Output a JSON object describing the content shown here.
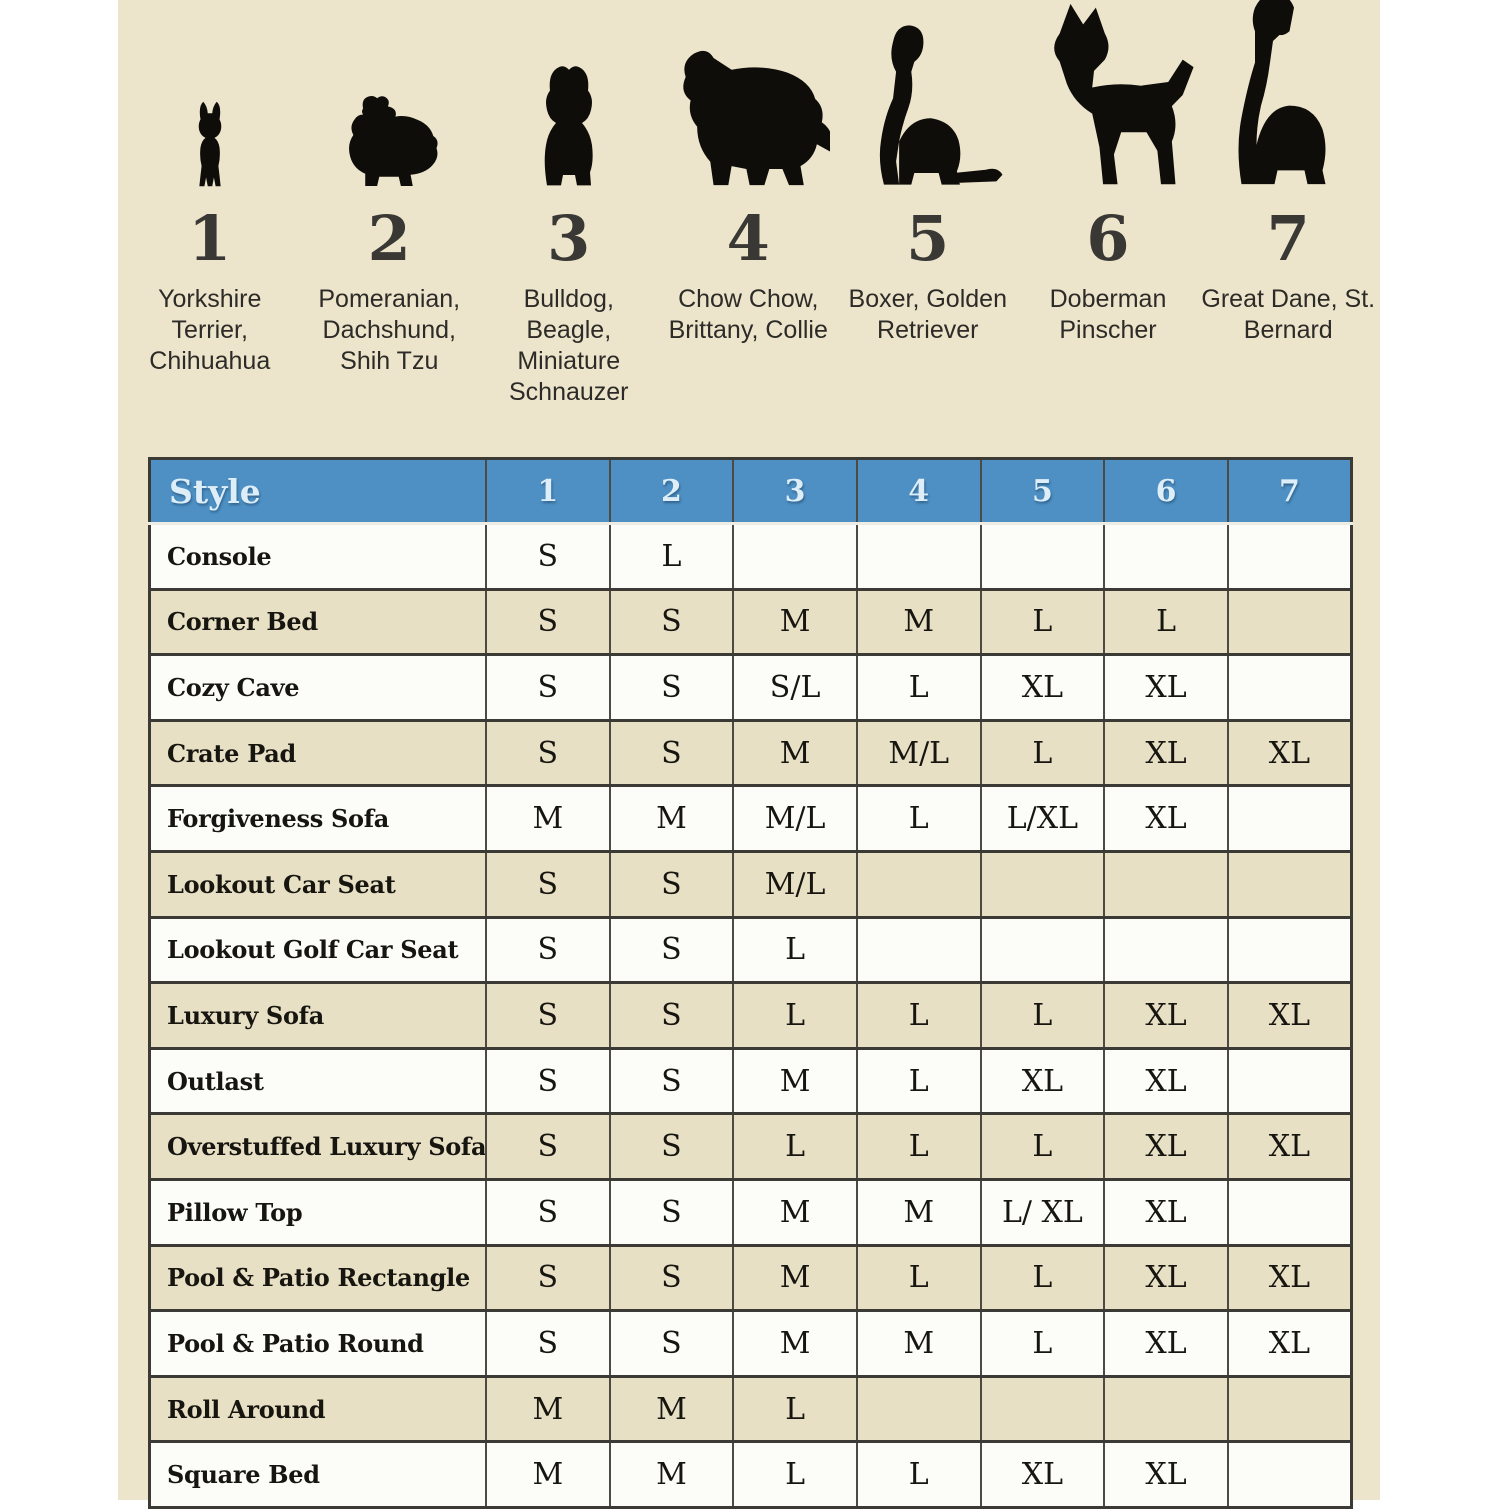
{
  "colors": {
    "panel_bg": "#ece4cb",
    "header_bg": "#4e90c4",
    "header_text": "#ddeef9",
    "row_bg": "#fcfcf9",
    "row_alt_bg": "#e8e0c5",
    "row_border": "#3c3a34",
    "col_border": "#4c4a43",
    "text": "#17150f",
    "silhouette": "#0e0d0a"
  },
  "chart_data": {
    "type": "table",
    "legend": [
      {
        "number": "1",
        "breeds": "Yorkshire Terrier, Chihuahua",
        "icon": "yorkshire-terrier-silhouette-icon"
      },
      {
        "number": "2",
        "breeds": "Pomeranian, Dachshund, Shih Tzu",
        "icon": "shih-tzu-silhouette-icon"
      },
      {
        "number": "3",
        "breeds": "Bulldog, Beagle, Miniature Schnauzer",
        "icon": "bulldog-silhouette-icon"
      },
      {
        "number": "4",
        "breeds": "Chow Chow, Brittany, Collie",
        "icon": "collie-silhouette-icon"
      },
      {
        "number": "5",
        "breeds": "Boxer, Golden Retriever",
        "icon": "boxer-silhouette-icon"
      },
      {
        "number": "6",
        "breeds": "Doberman Pinscher",
        "icon": "doberman-silhouette-icon"
      },
      {
        "number": "7",
        "breeds": "Great Dane, St. Bernard",
        "icon": "great-dane-silhouette-icon"
      }
    ],
    "header": {
      "style_label": "Style",
      "columns": [
        "1",
        "2",
        "3",
        "4",
        "5",
        "6",
        "7"
      ]
    },
    "rows": [
      {
        "style": "Console",
        "sizes": [
          "S",
          "L",
          "",
          "",
          "",
          "",
          ""
        ]
      },
      {
        "style": "Corner Bed",
        "sizes": [
          "S",
          "S",
          "M",
          "M",
          "L",
          "L",
          ""
        ]
      },
      {
        "style": "Cozy Cave",
        "sizes": [
          "S",
          "S",
          "S/L",
          "L",
          "XL",
          "XL",
          ""
        ]
      },
      {
        "style": "Crate Pad",
        "sizes": [
          "S",
          "S",
          "M",
          "M/L",
          "L",
          "XL",
          "XL"
        ]
      },
      {
        "style": "Forgiveness Sofa",
        "sizes": [
          "M",
          "M",
          "M/L",
          "L",
          "L/XL",
          "XL",
          ""
        ]
      },
      {
        "style": "Lookout Car Seat",
        "sizes": [
          "S",
          "S",
          "M/L",
          "",
          "",
          "",
          ""
        ]
      },
      {
        "style": "Lookout Golf Car Seat",
        "sizes": [
          "S",
          "S",
          "L",
          "",
          "",
          "",
          ""
        ]
      },
      {
        "style": "Luxury Sofa",
        "sizes": [
          "S",
          "S",
          "L",
          "L",
          "L",
          "XL",
          "XL"
        ]
      },
      {
        "style": "Outlast",
        "sizes": [
          "S",
          "S",
          "M",
          "L",
          "XL",
          "XL",
          ""
        ]
      },
      {
        "style": "Overstuffed Luxury Sofa",
        "sizes": [
          "S",
          "S",
          "L",
          "L",
          "L",
          "XL",
          "XL"
        ]
      },
      {
        "style": "Pillow Top",
        "sizes": [
          "S",
          "S",
          "M",
          "M",
          "L/ XL",
          "XL",
          ""
        ]
      },
      {
        "style": "Pool & Patio Rectangle",
        "sizes": [
          "S",
          "S",
          "M",
          "L",
          "L",
          "XL",
          "XL"
        ]
      },
      {
        "style": "Pool & Patio Round",
        "sizes": [
          "S",
          "S",
          "M",
          "M",
          "L",
          "XL",
          "XL"
        ]
      },
      {
        "style": "Roll Around",
        "sizes": [
          "M",
          "M",
          "L",
          "",
          "",
          "",
          ""
        ]
      },
      {
        "style": "Square Bed",
        "sizes": [
          "M",
          "M",
          "L",
          "L",
          "XL",
          "XL",
          ""
        ]
      }
    ]
  }
}
